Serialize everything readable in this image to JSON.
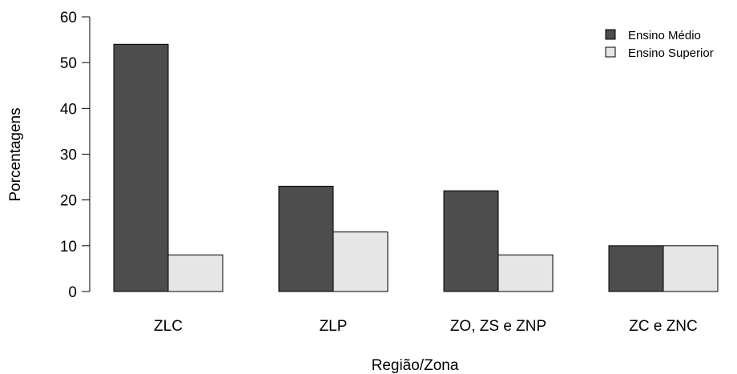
{
  "chart_data": {
    "type": "bar",
    "categories": [
      "ZLC",
      "ZLP",
      "ZO, ZS e ZNP",
      "ZC e ZNC"
    ],
    "series": [
      {
        "name": "Ensino Médio",
        "values": [
          54,
          23,
          22,
          10
        ],
        "color": "#4d4d4d"
      },
      {
        "name": "Ensino Superior",
        "values": [
          8,
          13,
          8,
          10
        ],
        "color": "#e6e6e6"
      }
    ],
    "xlabel": "Região/Zona",
    "ylabel": "Porcentagens",
    "ylim": [
      0,
      60
    ],
    "yticks": [
      0,
      10,
      20,
      30,
      40,
      50,
      60
    ],
    "grid": false,
    "legend_position": "top-right"
  }
}
